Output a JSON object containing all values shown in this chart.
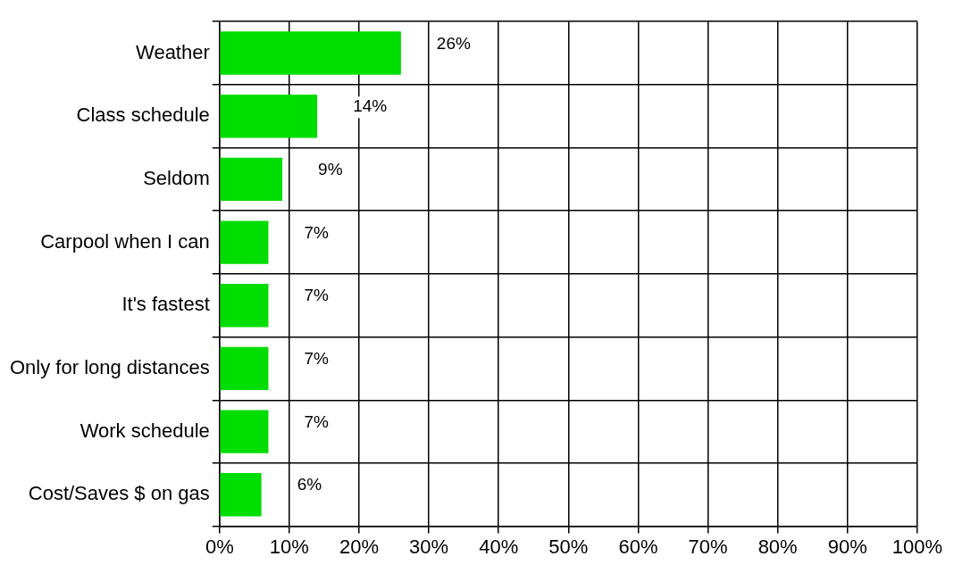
{
  "chart_data": {
    "type": "bar",
    "orientation": "horizontal",
    "categories": [
      "Weather",
      "Class schedule",
      "Seldom",
      "Carpool when I can",
      "It's fastest",
      "Only for long distances",
      "Work schedule",
      "Cost/Saves $ on gas"
    ],
    "values": [
      26,
      14,
      9,
      7,
      7,
      7,
      7,
      6
    ],
    "value_labels": [
      "26%",
      "14%",
      "9%",
      "7%",
      "7%",
      "7%",
      "7%",
      "6%"
    ],
    "color": "#00dd00",
    "xlim": [
      0,
      100
    ],
    "xticks": [
      {
        "value": 0,
        "label": "0%"
      },
      {
        "value": 10,
        "label": "10%"
      },
      {
        "value": 20,
        "label": "20%"
      },
      {
        "value": 30,
        "label": "30%"
      },
      {
        "value": 40,
        "label": "40%"
      },
      {
        "value": 50,
        "label": "50%"
      },
      {
        "value": 60,
        "label": "60%"
      },
      {
        "value": 70,
        "label": "70%"
      },
      {
        "value": 80,
        "label": "80%"
      },
      {
        "value": 90,
        "label": "90%"
      },
      {
        "value": 100,
        "label": "100%"
      }
    ],
    "grid": true
  }
}
